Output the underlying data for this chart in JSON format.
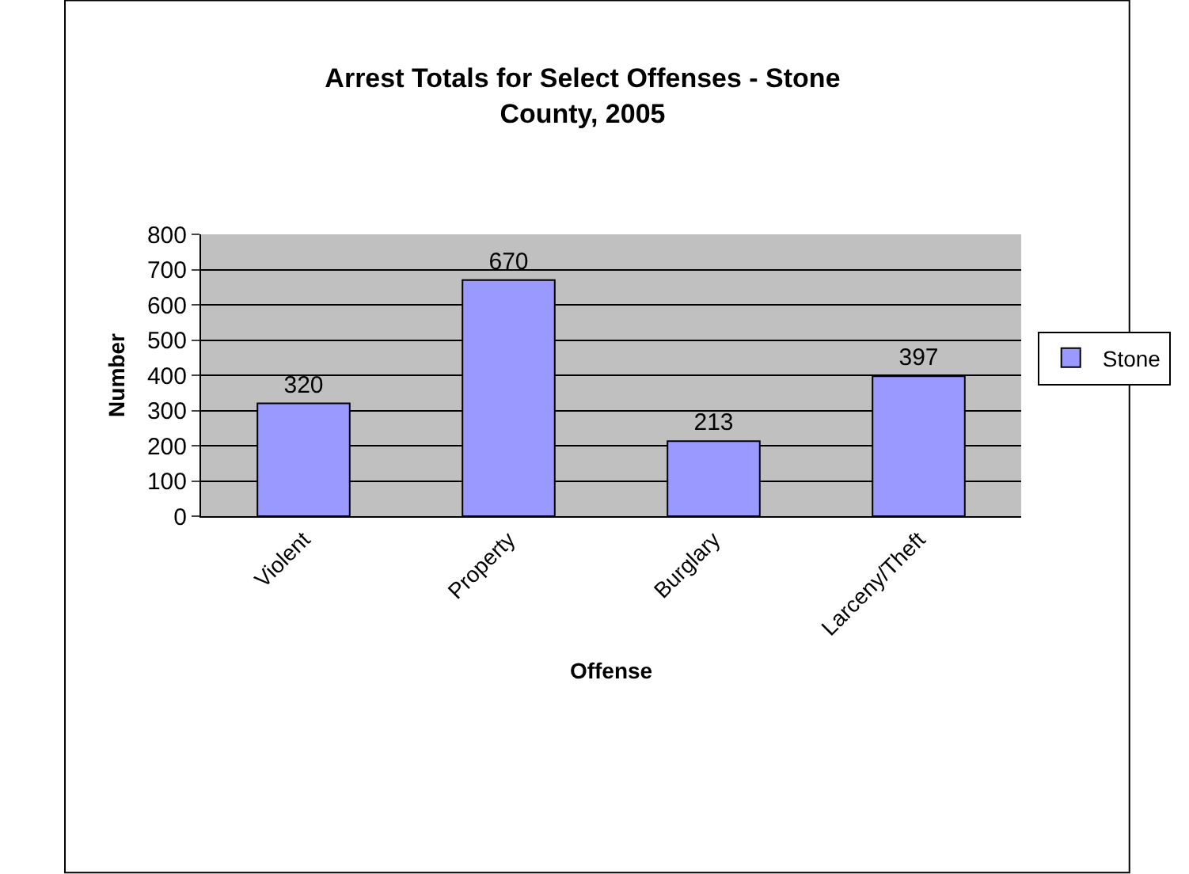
{
  "chart_data": {
    "type": "bar",
    "title": "Arrest Totals for Select Offenses - Stone County, 2005",
    "xlabel": "Offense",
    "ylabel": "Number",
    "categories": [
      "Violent",
      "Property",
      "Burglary",
      "Larceny/Theft"
    ],
    "series": [
      {
        "name": "Stone",
        "color": "#9999ff",
        "values": [
          320,
          670,
          213,
          397
        ]
      }
    ],
    "ylim": [
      0,
      800
    ],
    "yticks": [
      0,
      100,
      200,
      300,
      400,
      500,
      600,
      700,
      800
    ],
    "grid": "y",
    "legend": "right",
    "data_labels": true
  }
}
